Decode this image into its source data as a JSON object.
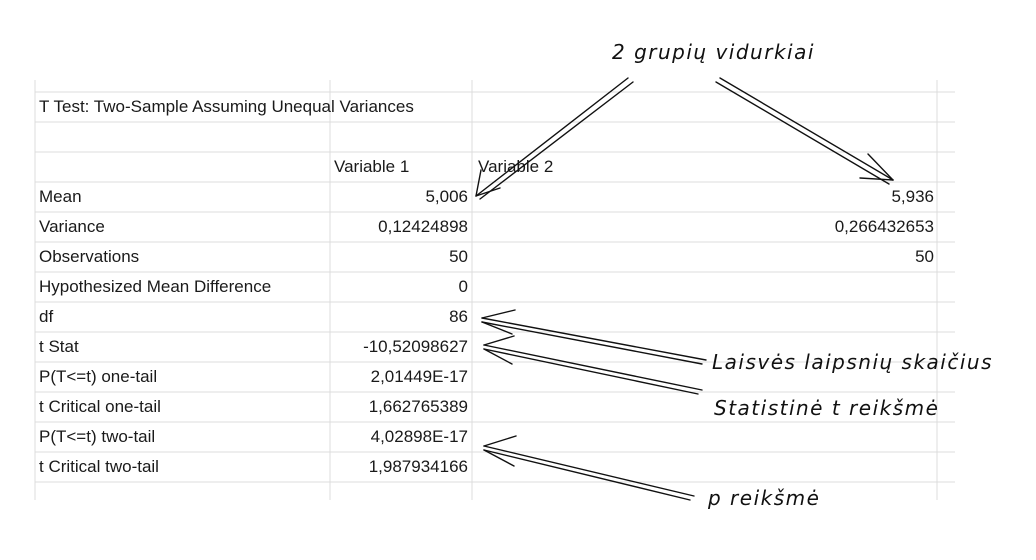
{
  "title": "T Test: Two-Sample Assuming Unequal Variances",
  "headers": {
    "var1": "Variable 1",
    "var2": "Variable 2"
  },
  "rows": [
    {
      "label": "Mean",
      "v1": "5,006",
      "v2": "5,936"
    },
    {
      "label": "Variance",
      "v1": "0,12424898",
      "v2": "0,266432653"
    },
    {
      "label": "Observations",
      "v1": "50",
      "v2": "50"
    },
    {
      "label": "Hypothesized Mean Difference",
      "v1": "0",
      "v2": ""
    },
    {
      "label": "df",
      "v1": "86",
      "v2": ""
    },
    {
      "label": "t Stat",
      "v1": "-10,52098627",
      "v2": ""
    },
    {
      "label": "P(T<=t) one-tail",
      "v1": "2,01449E-17",
      "v2": ""
    },
    {
      "label": "t Critical one-tail",
      "v1": "1,662765389",
      "v2": ""
    },
    {
      "label": "P(T<=t) two-tail",
      "v1": "4,02898E-17",
      "v2": ""
    },
    {
      "label": "t Critical two-tail",
      "v1": "1,987934166",
      "v2": ""
    }
  ],
  "annotations": {
    "means": "2 grupių vidurkiai",
    "df": "Laisvės laipsnių skaičius",
    "tstat": "Statistinė t reikšmė",
    "p": "p reikšmė"
  },
  "colors": {
    "grid": "#dcdcdc",
    "text": "#1a1a1a",
    "ink": "#111111"
  }
}
